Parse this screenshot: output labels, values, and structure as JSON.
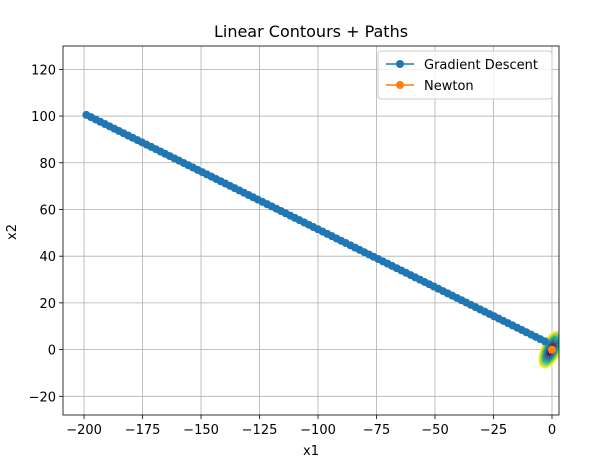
{
  "chart_data": {
    "type": "line",
    "title": "Linear Contours + Paths",
    "xlabel": "x1",
    "ylabel": "x2",
    "xlim": [
      -209,
      3
    ],
    "ylim": [
      -28,
      130
    ],
    "x_ticks": [
      -200,
      -175,
      -150,
      -125,
      -100,
      -75,
      -50,
      -25,
      0
    ],
    "y_ticks": [
      -20,
      0,
      20,
      40,
      60,
      80,
      100,
      120
    ],
    "x_tick_labels": [
      "−200",
      "−175",
      "−150",
      "−125",
      "−100",
      "−75",
      "−50",
      "−25",
      "0"
    ],
    "y_tick_labels": [
      "−20",
      "0",
      "20",
      "40",
      "60",
      "80",
      "100",
      "120"
    ],
    "grid": true,
    "legend_placement": "top-right",
    "series": [
      {
        "name": "Gradient Descent",
        "color": "#1f77b4",
        "marker": "circle",
        "start": [
          -199,
          100.5
        ],
        "end": [
          -3,
          3.5
        ],
        "num_points": 100
      },
      {
        "name": "Newton",
        "color": "#ff7f0e",
        "marker": "circle",
        "start": [
          0,
          0
        ],
        "end": [
          0,
          0
        ],
        "num_points": 2
      }
    ],
    "contours": {
      "center": [
        0,
        0
      ],
      "levels": 9,
      "colormap": [
        "#440154",
        "#472c7a",
        "#3b518b",
        "#2c718e",
        "#21908d",
        "#27ad81",
        "#5cc863",
        "#aadc32",
        "#fde725"
      ]
    }
  }
}
